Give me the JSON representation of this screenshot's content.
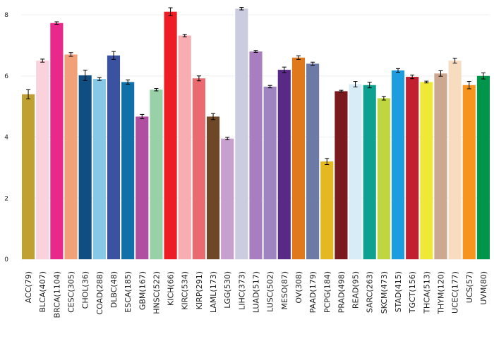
{
  "chart_data": {
    "type": "bar",
    "title": "",
    "xlabel": "",
    "ylabel": "",
    "ylim": [
      0,
      8.3
    ],
    "yticks": [
      "0",
      "2",
      "4",
      "6",
      "8"
    ],
    "grid": true,
    "error_bars": true,
    "categories": [
      "ACC(79)",
      "BLCA(407)",
      "BRCA(1104)",
      "CESC(305)",
      "CHOL(36)",
      "COAD(288)",
      "DLBC(48)",
      "ESCA(185)",
      "GBM(167)",
      "HNSC(522)",
      "KICH(66)",
      "KIRC(534)",
      "KIRP(291)",
      "LAML(173)",
      "LGG(530)",
      "LIHC(373)",
      "LUAD(517)",
      "LUSC(502)",
      "MESO(87)",
      "OV(308)",
      "PAAD(179)",
      "PCPG(184)",
      "PRAD(498)",
      "READ(95)",
      "SARC(263)",
      "SKCM(473)",
      "STAD(415)",
      "TGCT(156)",
      "THCA(513)",
      "THYM(120)",
      "UCEC(177)",
      "UCS(57)",
      "UVM(80)"
    ],
    "values": [
      5.4,
      6.5,
      7.73,
      6.7,
      6.02,
      5.9,
      6.67,
      5.8,
      4.67,
      5.55,
      8.1,
      7.32,
      5.92,
      4.67,
      3.95,
      8.2,
      6.8,
      5.65,
      6.2,
      6.6,
      6.4,
      3.2,
      5.5,
      5.73,
      5.7,
      5.27,
      6.18,
      5.97,
      5.8,
      6.08,
      6.5,
      5.7,
      6.0
    ],
    "errors": [
      0.15,
      0.05,
      0.04,
      0.06,
      0.17,
      0.05,
      0.13,
      0.07,
      0.07,
      0.04,
      0.13,
      0.04,
      0.08,
      0.1,
      0.04,
      0.04,
      0.03,
      0.04,
      0.09,
      0.06,
      0.05,
      0.1,
      0.03,
      0.09,
      0.09,
      0.06,
      0.06,
      0.06,
      0.03,
      0.09,
      0.08,
      0.12,
      0.1
    ],
    "colors": [
      "#C0A030",
      "#FAD2DC",
      "#E8288A",
      "#F2A078",
      "#104E82",
      "#86C8E6",
      "#3A52A0",
      "#1270A8",
      "#B04EA0",
      "#98D0A8",
      "#EE1C25",
      "#F8AEB0",
      "#EA6A70",
      "#6E4826",
      "#C8A0CE",
      "#CCCCE0",
      "#A87EC0",
      "#9E84C0",
      "#582A86",
      "#E0781C",
      "#6E7AA6",
      "#E4B820",
      "#7A1A1E",
      "#D8ECF8",
      "#0EA090",
      "#BFD640",
      "#1E9CE0",
      "#C22030",
      "#F0E838",
      "#CCA890",
      "#F8DCC0",
      "#F7941D",
      "#00954A"
    ]
  }
}
